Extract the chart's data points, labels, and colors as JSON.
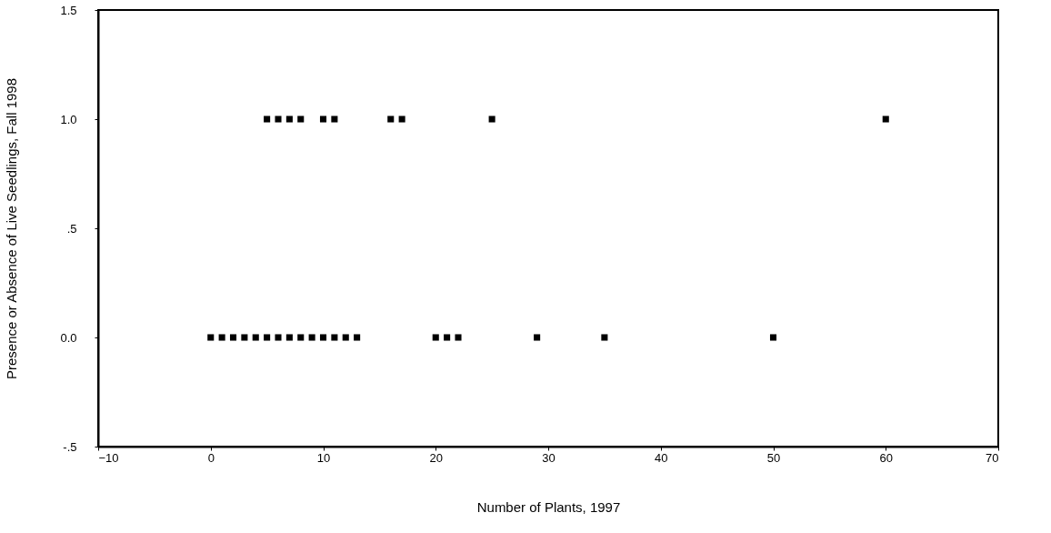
{
  "chart_data": {
    "type": "scatter",
    "xlabel": "Number of Plants, 1997",
    "ylabel": "Presence or Absence of Live Seedlings, Fall 1998",
    "x": [
      5,
      6,
      7,
      8,
      10,
      11,
      16,
      17,
      25,
      60,
      0,
      1,
      2,
      3,
      4,
      5,
      6,
      7,
      8,
      9,
      10,
      11,
      12,
      13,
      20,
      21,
      22,
      29,
      35,
      50
    ],
    "series": [
      {
        "color": "#000000",
        "values": [
          1,
          1,
          1,
          1,
          1,
          1,
          1,
          1,
          1,
          1,
          0,
          0,
          0,
          0,
          0,
          0,
          0,
          0,
          0,
          0,
          0,
          0,
          0,
          0,
          0,
          0,
          0,
          0,
          0,
          0
        ]
      }
    ],
    "xlim": [
      -10,
      70
    ],
    "xticks": [
      -10,
      0,
      10,
      20,
      30,
      40,
      50,
      60,
      70
    ],
    "ylim": [
      -0.5,
      1.5
    ],
    "yticks": [
      {
        "value": -0.5,
        "label": "-.5"
      },
      {
        "value": 0,
        "label": "0.0"
      },
      {
        "value": 0.5,
        "label": ".5"
      },
      {
        "value": 1,
        "label": "1.0"
      },
      {
        "value": 1.5,
        "label": "1.5"
      }
    ],
    "marker": "square",
    "grid": false
  }
}
